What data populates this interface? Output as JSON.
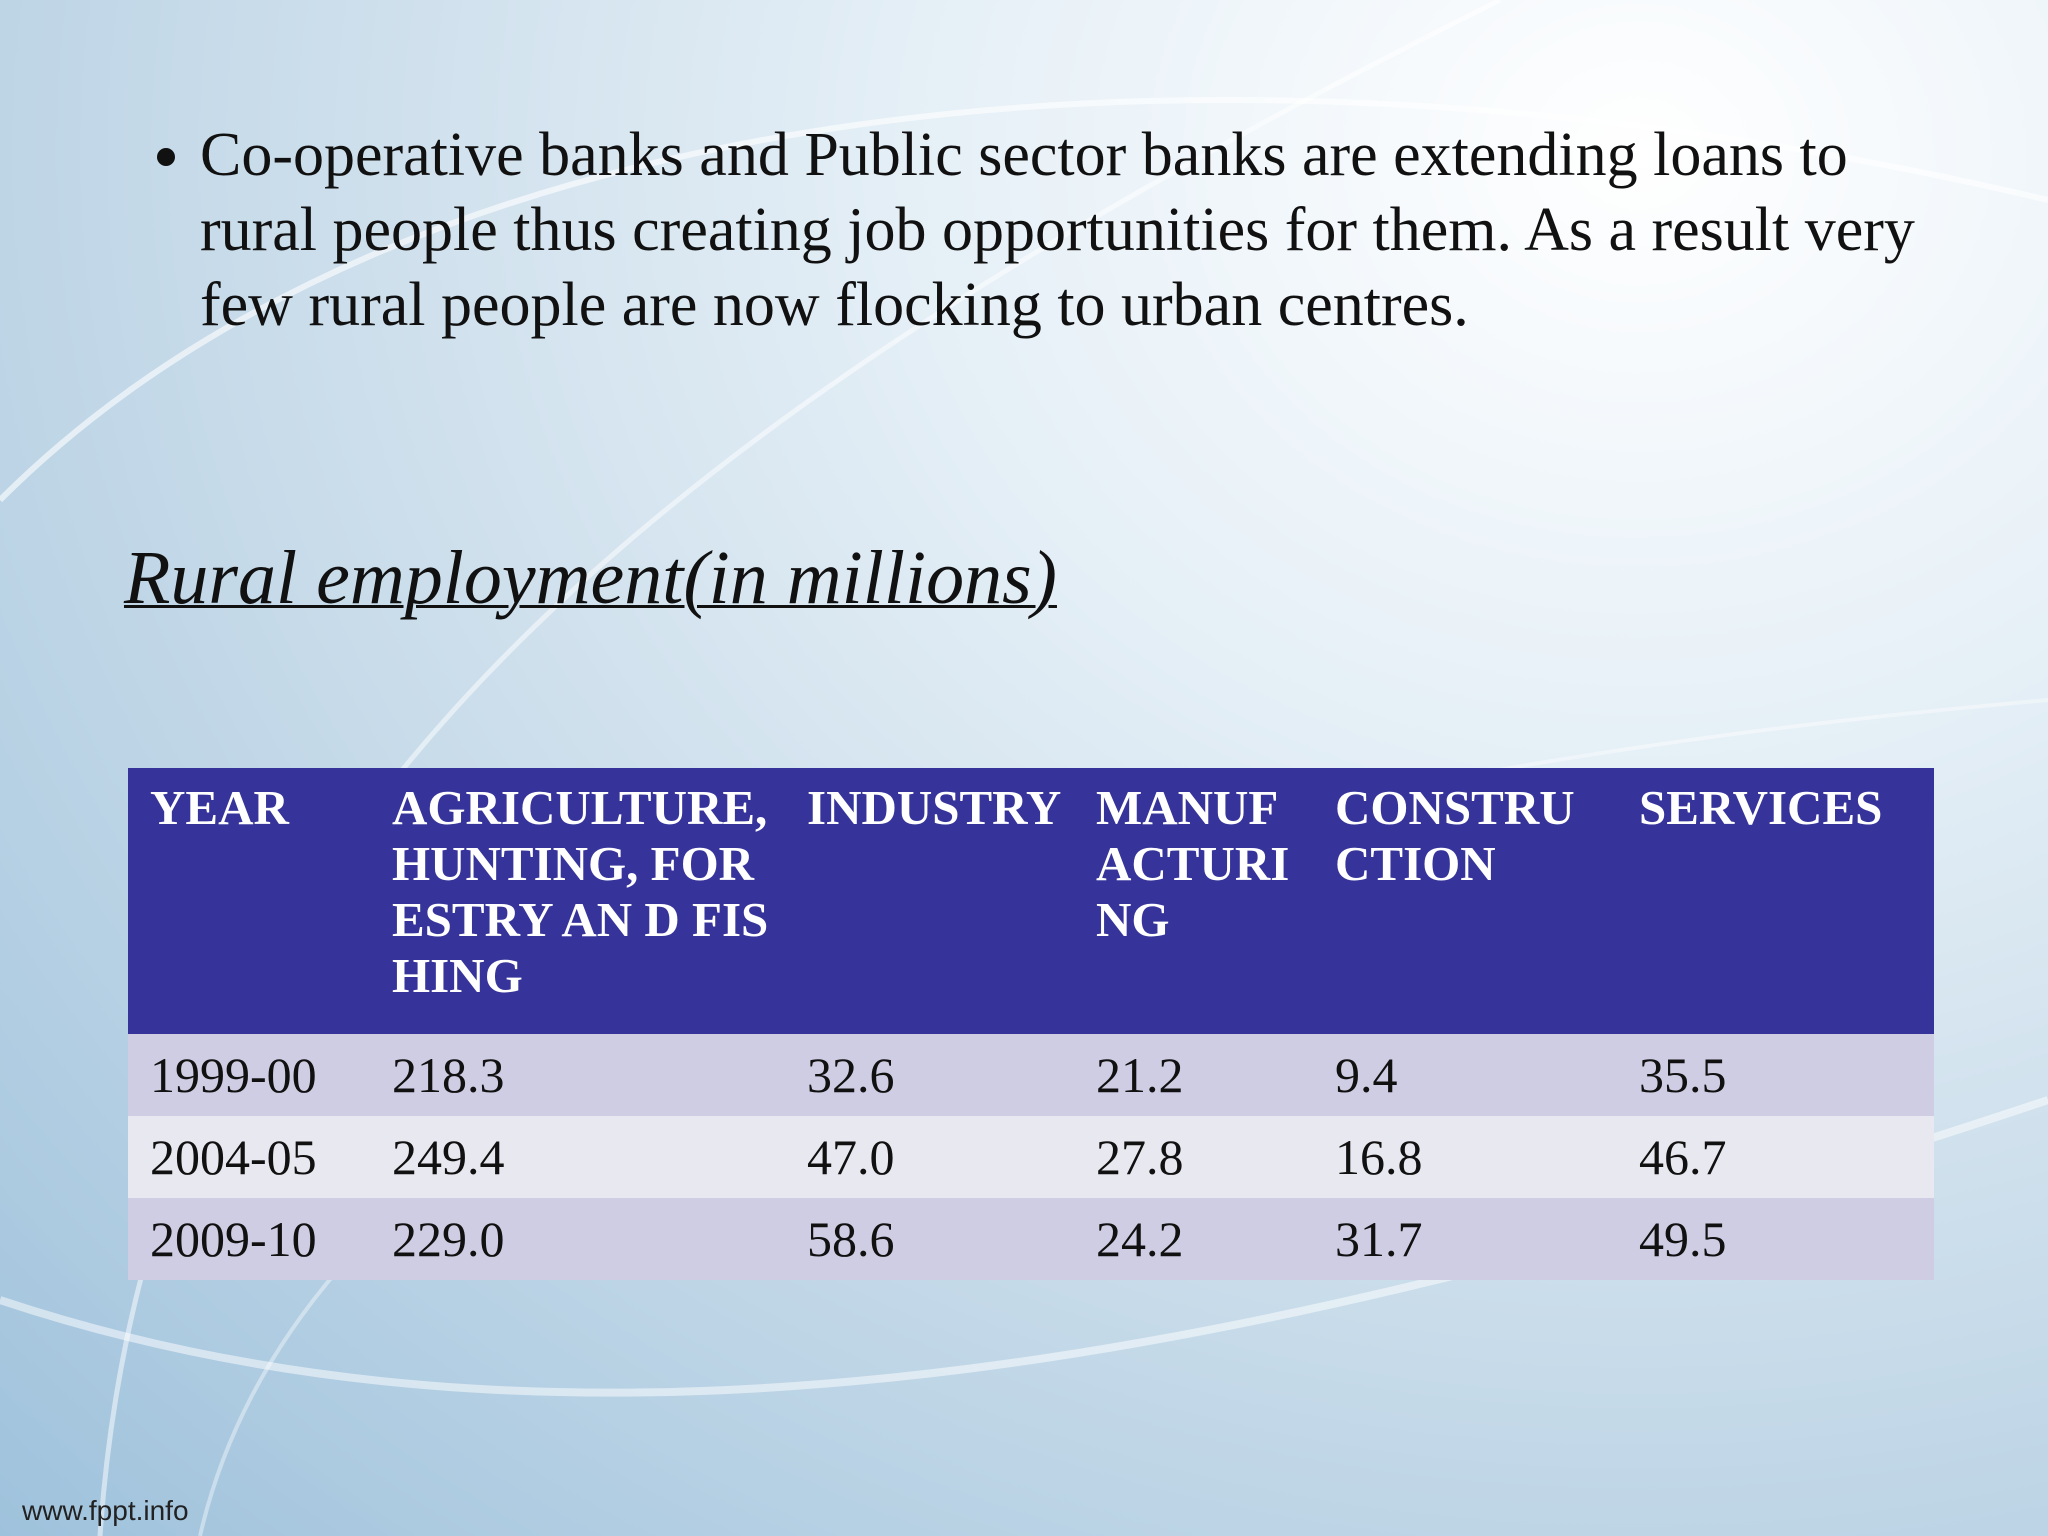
{
  "bullets": [
    "Co-operative banks and Public sector banks are extending loans to rural people thus creating job opportunities for them. As a result very few rural people are now flocking to urban centres."
  ],
  "heading": "Rural employment(in millions)",
  "table": {
    "header": [
      "YEAR",
      "AGRICULTURE, HUNTING, FORESTRY AN D FISHING",
      "INDUSTRY",
      "MANUFACTURING",
      "CONSTRUCTION",
      "SERVICES"
    ],
    "rows": [
      [
        "1999-00",
        "218.3",
        "32.6",
        "21.2",
        "9.4",
        "35.5"
      ],
      [
        "2004-05",
        "249.4",
        "47.0",
        "27.8",
        "16.8",
        "46.7"
      ],
      [
        "2009-10",
        "229.0",
        "58.6",
        "24.2",
        "31.7",
        "49.5"
      ]
    ]
  },
  "footer": "www.fppt.info"
}
